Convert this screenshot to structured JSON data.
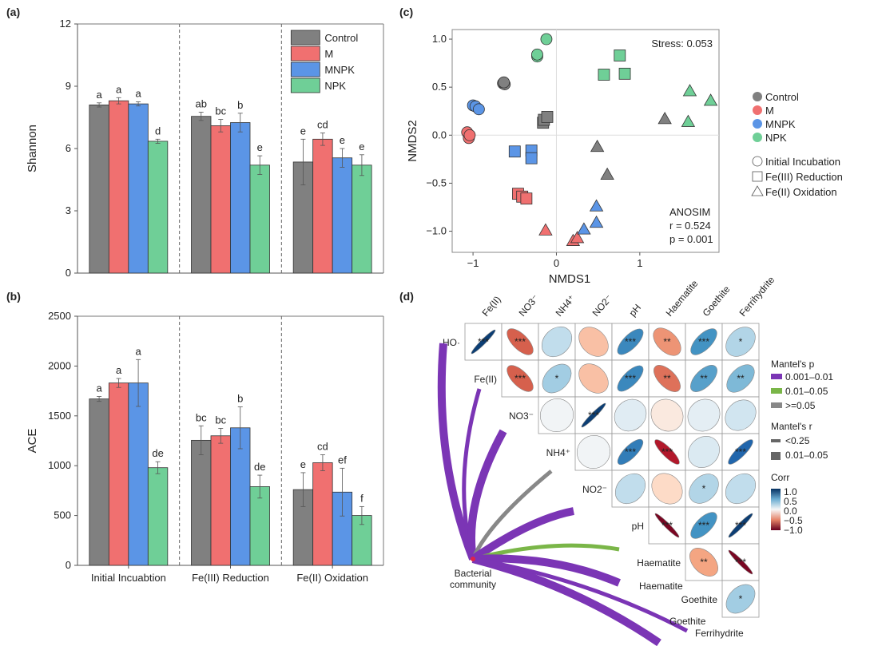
{
  "panels": {
    "a": "(a)",
    "b": "(b)",
    "c": "(c)",
    "d": "(d)"
  },
  "colors": {
    "Control": "#808080",
    "M": "#f07070",
    "MNPK": "#5b95e6",
    "NPK": "#6fcf97"
  },
  "chart_data": [
    {
      "id": "a",
      "type": "bar",
      "title": "",
      "ylabel": "Shannon",
      "xlabel": "",
      "ylim": [
        0,
        12
      ],
      "yticks": [
        0,
        3,
        6,
        9,
        12
      ],
      "categories": [
        "Initial Incuabtion",
        "Fe(III) Reduction",
        "Fe(II) Oxidation"
      ],
      "legend": [
        "Control",
        "M",
        "MNPK",
        "NPK"
      ],
      "legend_position": "top-right",
      "series": [
        {
          "name": "Control",
          "values": [
            8.1,
            7.55,
            5.35
          ],
          "errors": [
            0.1,
            0.2,
            1.1
          ],
          "letters": [
            "a",
            "ab",
            "e"
          ]
        },
        {
          "name": "M",
          "values": [
            8.3,
            7.1,
            6.45
          ],
          "errors": [
            0.15,
            0.3,
            0.3
          ],
          "letters": [
            "a",
            "bc",
            "cd"
          ]
        },
        {
          "name": "MNPK",
          "values": [
            8.15,
            7.25,
            5.55
          ],
          "errors": [
            0.1,
            0.45,
            0.45
          ],
          "letters": [
            "a",
            "b",
            "e"
          ]
        },
        {
          "name": "NPK",
          "values": [
            6.35,
            5.2,
            5.2
          ],
          "errors": [
            0.1,
            0.45,
            0.5
          ],
          "letters": [
            "d",
            "e",
            "e"
          ]
        }
      ]
    },
    {
      "id": "b",
      "type": "bar",
      "title": "",
      "ylabel": "ACE",
      "xlabel": "",
      "ylim": [
        0,
        2500
      ],
      "yticks": [
        0,
        500,
        1000,
        1500,
        2000,
        2500
      ],
      "categories": [
        "Initial Incuabtion",
        "Fe(III) Reduction",
        "Fe(II) Oxidation"
      ],
      "series": [
        {
          "name": "Control",
          "values": [
            1670,
            1255,
            760
          ],
          "errors": [
            25,
            145,
            170
          ],
          "letters": [
            "a",
            "bc",
            "e"
          ]
        },
        {
          "name": "M",
          "values": [
            1830,
            1300,
            1030
          ],
          "errors": [
            45,
            75,
            80
          ],
          "letters": [
            "a",
            "bc",
            "cd"
          ]
        },
        {
          "name": "MNPK",
          "values": [
            1830,
            1380,
            735
          ],
          "errors": [
            235,
            210,
            240
          ],
          "letters": [
            "a",
            "b",
            "ef"
          ]
        },
        {
          "name": "NPK",
          "values": [
            980,
            790,
            500
          ],
          "errors": [
            60,
            115,
            90
          ],
          "letters": [
            "de",
            "de",
            "f"
          ]
        }
      ]
    },
    {
      "id": "c",
      "type": "scatter",
      "xlabel": "NMDS1",
      "ylabel": "NMDS2",
      "xlim": [
        -1.25,
        1.95
      ],
      "ylim": [
        -1.22,
        1.1
      ],
      "xticks": [
        -1,
        0,
        1
      ],
      "yticks": [
        -1.0,
        -0.5,
        0.0,
        0.5,
        1.0
      ],
      "ytick_labels": [
        "−1.0",
        "−0.5",
        "0.0",
        "0.5",
        "1.0"
      ],
      "xtick_labels": [
        "−1",
        "0",
        "1"
      ],
      "stress": "Stress: 0.053",
      "anosim": {
        "title": "ANOSIM",
        "r": "r = 0.524",
        "p": "p = 0.001"
      },
      "legend_colors": [
        "Control",
        "M",
        "MNPK",
        "NPK"
      ],
      "legend_shapes": [
        {
          "shape": "circle",
          "label": "Initial Incubation"
        },
        {
          "shape": "square",
          "label": "Fe(III) Reduction"
        },
        {
          "shape": "triangle",
          "label": "Fe(II) Oxidation"
        }
      ],
      "points": [
        {
          "group": "Control",
          "shape": "circle",
          "x": -0.64,
          "y": 0.54
        },
        {
          "group": "Control",
          "shape": "circle",
          "x": -0.62,
          "y": 0.53
        },
        {
          "group": "Control",
          "shape": "circle",
          "x": -0.63,
          "y": 0.55
        },
        {
          "group": "M",
          "shape": "circle",
          "x": -1.07,
          "y": 0.03
        },
        {
          "group": "M",
          "shape": "circle",
          "x": -1.05,
          "y": -0.03
        },
        {
          "group": "M",
          "shape": "circle",
          "x": -1.04,
          "y": 0.0
        },
        {
          "group": "MNPK",
          "shape": "circle",
          "x": -1.0,
          "y": 0.31
        },
        {
          "group": "MNPK",
          "shape": "circle",
          "x": -0.97,
          "y": 0.3
        },
        {
          "group": "MNPK",
          "shape": "circle",
          "x": -0.93,
          "y": 0.27
        },
        {
          "group": "NPK",
          "shape": "circle",
          "x": -0.23,
          "y": 0.82
        },
        {
          "group": "NPK",
          "shape": "circle",
          "x": -0.23,
          "y": 0.84
        },
        {
          "group": "NPK",
          "shape": "circle",
          "x": -0.12,
          "y": 1.0
        },
        {
          "group": "Control",
          "shape": "square",
          "x": -0.16,
          "y": 0.13
        },
        {
          "group": "Control",
          "shape": "square",
          "x": -0.15,
          "y": 0.16
        },
        {
          "group": "Control",
          "shape": "square",
          "x": -0.11,
          "y": 0.19
        },
        {
          "group": "M",
          "shape": "square",
          "x": -0.46,
          "y": -0.61
        },
        {
          "group": "M",
          "shape": "square",
          "x": -0.41,
          "y": -0.64
        },
        {
          "group": "M",
          "shape": "square",
          "x": -0.36,
          "y": -0.66
        },
        {
          "group": "MNPK",
          "shape": "square",
          "x": -0.5,
          "y": -0.17
        },
        {
          "group": "MNPK",
          "shape": "square",
          "x": -0.3,
          "y": -0.16
        },
        {
          "group": "MNPK",
          "shape": "square",
          "x": -0.3,
          "y": -0.24
        },
        {
          "group": "NPK",
          "shape": "square",
          "x": 0.57,
          "y": 0.63
        },
        {
          "group": "NPK",
          "shape": "square",
          "x": 0.76,
          "y": 0.83
        },
        {
          "group": "NPK",
          "shape": "square",
          "x": 0.82,
          "y": 0.64
        },
        {
          "group": "Control",
          "shape": "triangle",
          "x": 0.49,
          "y": -0.12
        },
        {
          "group": "Control",
          "shape": "triangle",
          "x": 0.61,
          "y": -0.41
        },
        {
          "group": "Control",
          "shape": "triangle",
          "x": 1.3,
          "y": 0.17
        },
        {
          "group": "M",
          "shape": "triangle",
          "x": -0.13,
          "y": -0.99
        },
        {
          "group": "M",
          "shape": "triangle",
          "x": 0.2,
          "y": -1.1
        },
        {
          "group": "M",
          "shape": "triangle",
          "x": 0.25,
          "y": -1.07
        },
        {
          "group": "MNPK",
          "shape": "triangle",
          "x": 0.33,
          "y": -0.98
        },
        {
          "group": "MNPK",
          "shape": "triangle",
          "x": 0.48,
          "y": -0.91
        },
        {
          "group": "MNPK",
          "shape": "triangle",
          "x": 0.48,
          "y": -0.74
        },
        {
          "group": "NPK",
          "shape": "triangle",
          "x": 1.6,
          "y": 0.46
        },
        {
          "group": "NPK",
          "shape": "triangle",
          "x": 1.58,
          "y": 0.14
        },
        {
          "group": "NPK",
          "shape": "triangle",
          "x": 1.85,
          "y": 0.36
        }
      ]
    },
    {
      "id": "d",
      "type": "heatmap",
      "col_labels": [
        "Fe(II)",
        "NO3⁻",
        "NH4⁺",
        "NO2⁻",
        "pH",
        "Haematite",
        "Goethite",
        "Ferrihydrite"
      ],
      "row_labels": [
        "HO·",
        "Fe(II)",
        "NO3⁻",
        "NH4⁺",
        "NO2⁻",
        "pH",
        "Haematite",
        "Goethite"
      ],
      "cells": [
        [
          {
            "r": 0.95,
            "sig": "***"
          },
          {
            "r": -0.6,
            "sig": "***"
          },
          {
            "r": 0.25,
            "sig": ""
          },
          {
            "r": -0.3,
            "sig": ""
          },
          {
            "r": 0.65,
            "sig": "***"
          },
          {
            "r": -0.45,
            "sig": "**"
          },
          {
            "r": 0.6,
            "sig": "***"
          },
          {
            "r": 0.3,
            "sig": "*"
          }
        ],
        [
          null,
          {
            "r": -0.6,
            "sig": "***"
          },
          {
            "r": 0.35,
            "sig": "*"
          },
          {
            "r": -0.3,
            "sig": ""
          },
          {
            "r": 0.65,
            "sig": "***"
          },
          {
            "r": -0.55,
            "sig": "**"
          },
          {
            "r": 0.55,
            "sig": "**"
          },
          {
            "r": 0.45,
            "sig": "**"
          }
        ],
        [
          null,
          null,
          {
            "r": 0.03,
            "sig": ""
          },
          {
            "r": 0.95,
            "sig": "***"
          },
          {
            "r": 0.12,
            "sig": ""
          },
          {
            "r": -0.1,
            "sig": ""
          },
          {
            "r": 0.1,
            "sig": ""
          },
          {
            "r": 0.2,
            "sig": ""
          }
        ],
        [
          null,
          null,
          null,
          {
            "r": 0.03,
            "sig": ""
          },
          {
            "r": 0.7,
            "sig": "***"
          },
          {
            "r": -0.8,
            "sig": "***"
          },
          {
            "r": 0.15,
            "sig": ""
          },
          {
            "r": 0.8,
            "sig": "***"
          }
        ],
        [
          null,
          null,
          null,
          null,
          {
            "r": 0.25,
            "sig": ""
          },
          {
            "r": -0.2,
            "sig": ""
          },
          {
            "r": 0.3,
            "sig": "*"
          },
          {
            "r": 0.25,
            "sig": ""
          }
        ],
        [
          null,
          null,
          null,
          null,
          null,
          {
            "r": -0.95,
            "sig": "***"
          },
          {
            "r": 0.6,
            "sig": "***"
          },
          {
            "r": 0.95,
            "sig": "***"
          }
        ],
        [
          null,
          null,
          null,
          null,
          null,
          null,
          {
            "r": -0.4,
            "sig": "**"
          },
          {
            "r": -0.95,
            "sig": "***"
          }
        ],
        [
          null,
          null,
          null,
          null,
          null,
          null,
          null,
          {
            "r": 0.35,
            "sig": "*"
          }
        ]
      ],
      "mantel_links": [
        {
          "to": "HO·",
          "p_class": "0.001–0.01",
          "r_class": "0.01–0.05"
        },
        {
          "to": "Fe(II)",
          "p_class": "0.001–0.01",
          "r_class": "<0.25"
        },
        {
          "to": "NO3⁻",
          "p_class": "0.001–0.01",
          "r_class": "0.01–0.05"
        },
        {
          "to": "NH4⁺",
          "p_class": ">=0.05",
          "r_class": "<0.25"
        },
        {
          "to": "NO2⁻",
          "p_class": "0.001–0.01",
          "r_class": "0.01–0.05"
        },
        {
          "to": "pH",
          "p_class": "0.01–0.05",
          "r_class": "<0.25"
        },
        {
          "to": "Haematite",
          "p_class": "0.001–0.01",
          "r_class": "0.01–0.05"
        },
        {
          "to": "Goethite",
          "p_class": "0.001–0.01",
          "r_class": "0.01–0.05"
        },
        {
          "to": "Ferrihydrite",
          "p_class": "0.001–0.01",
          "r_class": "<0.25"
        }
      ],
      "source_label": [
        "Bacterial",
        "community"
      ],
      "legend": {
        "mantel_p_title": "Mantel's p",
        "mantel_p": [
          {
            "label": "0.001–0.01",
            "color": "#7b35b5"
          },
          {
            "label": "0.01–0.05",
            "color": "#7ab648"
          },
          {
            "label": ">=0.05",
            "color": "#888888"
          }
        ],
        "mantel_r_title": "Mantel's r",
        "mantel_r": [
          {
            "label": "<0.25"
          },
          {
            "label": "0.01–0.05"
          }
        ],
        "corr_title": "Corr",
        "corr_ticks": [
          "1.0",
          "0.5",
          "0.0",
          "−0.5",
          "−1.0"
        ]
      }
    }
  ]
}
